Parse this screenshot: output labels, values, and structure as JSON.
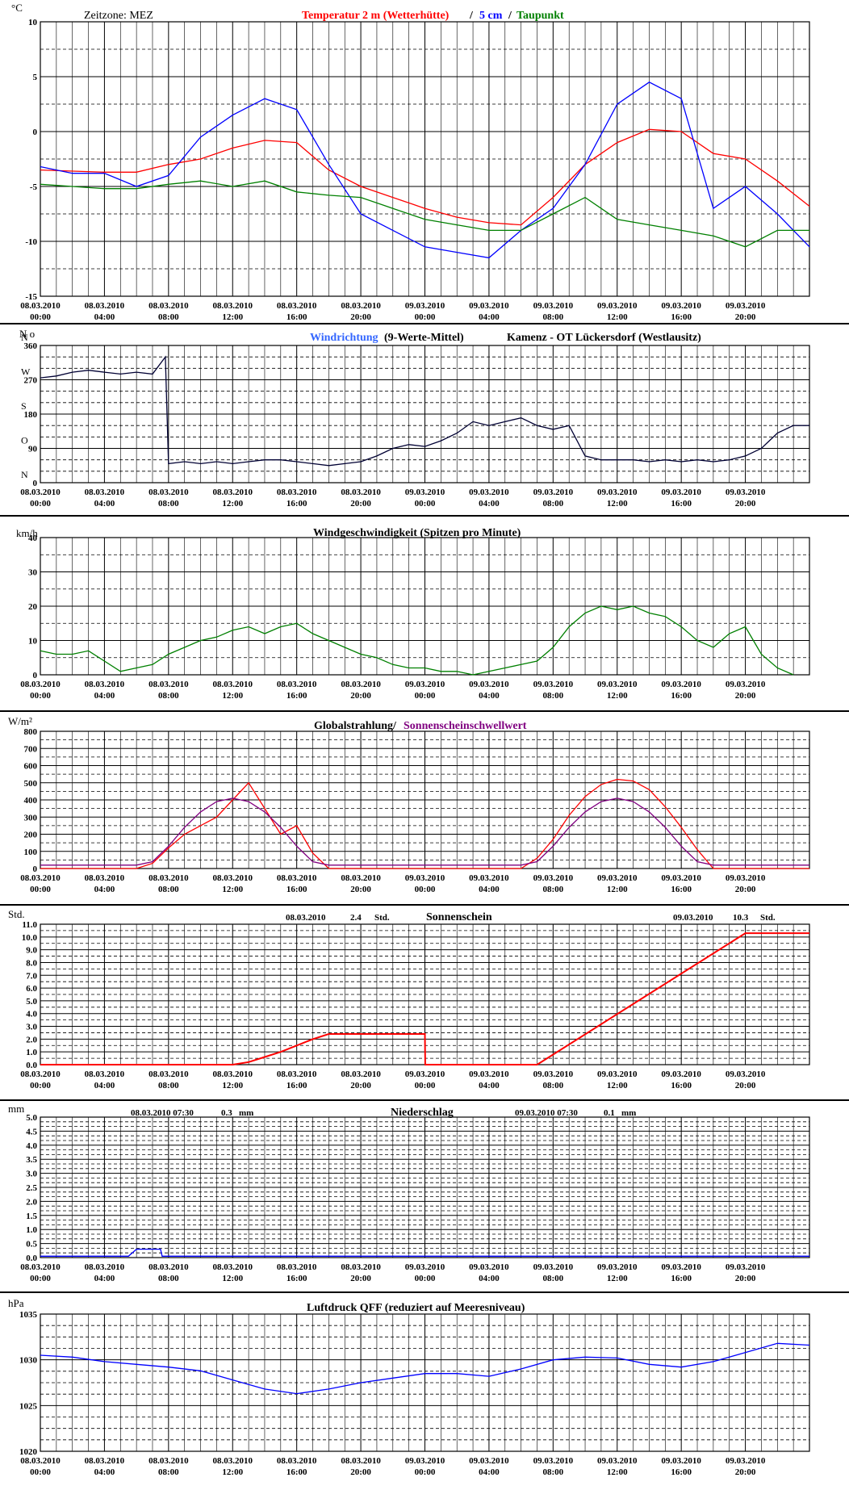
{
  "time_axis": {
    "date_labels": [
      "08.03.2010",
      "08.03.2010",
      "08.03.2010",
      "08.03.2010",
      "08.03.2010",
      "08.03.2010",
      "09.03.2010",
      "09.03.2010",
      "09.03.2010",
      "09.03.2010",
      "09.03.2010",
      "09.03.2010"
    ],
    "time_labels": [
      "00:00",
      "04:00",
      "08:00",
      "12:00",
      "16:00",
      "20:00",
      "00:00",
      "04:00",
      "08:00",
      "12:00",
      "16:00",
      "20:00"
    ],
    "xlim_hours": [
      0,
      48
    ]
  },
  "colors": {
    "grid": "#000000",
    "temp2m": "#ff0000",
    "temp5cm": "#0000ff",
    "dew": "#008000",
    "wind_dir_raw": "#3366ff",
    "wind_dir_avg": "#000033",
    "wind_speed": "#008000",
    "radiation": "#ff0000",
    "sun_threshold": "#800080",
    "sunshine": "#ff0000",
    "precip": "#0000ff",
    "pressure": "#0000ff"
  },
  "panels": {
    "temperature": {
      "unit": "°C",
      "zone": "Zeitzone: MEZ",
      "title_red": "Temperatur 2 m (Wetterhütte)",
      "slash1": "/",
      "title_blue": "5 cm",
      "slash2": "/",
      "title_green": "Taupunkt",
      "yticks": [
        "10",
        "5",
        "0",
        "-5",
        "-10",
        "-15"
      ]
    },
    "wind_dir": {
      "unit": "N o",
      "title_blue": "Windrichtung",
      "title_black": "(9-Werte-Mittel)",
      "station": "Kamenz - OT Lückersdorf (Westlausitz)",
      "yticks": [
        "360",
        "270",
        "180",
        "90",
        "0"
      ],
      "compass": [
        "N",
        "W",
        "S",
        "O",
        "N"
      ]
    },
    "wind_speed": {
      "unit": "km/h",
      "title": "Windgeschwindigkeit (Spitzen pro Minute)",
      "yticks": [
        "40",
        "30",
        "20",
        "10",
        "0"
      ]
    },
    "radiation": {
      "unit": "W/m²",
      "title_red": "Globalstrahlung/",
      "title_purple": "Sonnenscheinschwellwert",
      "yticks": [
        "800",
        "700",
        "600",
        "500",
        "400",
        "300",
        "200",
        "100",
        "0"
      ]
    },
    "sunshine": {
      "unit": "Std.",
      "title": "Sonnenschein",
      "day1_date": "08.03.2010",
      "day1_value": "2.4",
      "day1_unit": "Std.",
      "day2_date": "09.03.2010",
      "day2_value": "10.3",
      "day2_unit": "Std.",
      "yticks": [
        "11.0",
        "10.0",
        "9.0",
        "8.0",
        "7.0",
        "6.0",
        "5.0",
        "4.0",
        "3.0",
        "2.0",
        "1.0",
        "0.0"
      ]
    },
    "precipitation": {
      "unit": "mm",
      "title": "Niederschlag",
      "day1_date": "08.03.2010 07:30",
      "day1_value": "0.3",
      "day1_unit": "mm",
      "day2_date": "09.03.2010 07:30",
      "day2_value": "0.1",
      "day2_unit": "mm",
      "yticks": [
        "5.0",
        "4.5",
        "4.0",
        "3.5",
        "3.0",
        "2.5",
        "2.0",
        "1.5",
        "1.0",
        "0.5",
        "0.0"
      ]
    },
    "pressure": {
      "unit": "hPa",
      "title": "Luftdruck QFF (reduziert auf Meeresniveau)",
      "yticks": [
        "1035",
        "1030",
        "1025",
        "1020"
      ]
    }
  },
  "chart_data": [
    {
      "type": "line",
      "ylim": [
        -15,
        10
      ],
      "x_hours": [
        0,
        2,
        4,
        6,
        8,
        10,
        12,
        14,
        16,
        18,
        20,
        22,
        24,
        26,
        28,
        30,
        32,
        34,
        36,
        38,
        40,
        42,
        44,
        46,
        48
      ],
      "series": [
        {
          "values": [
            -3.5,
            -3.6,
            -3.7,
            -3.7,
            -3.0,
            -2.5,
            -1.5,
            -0.8,
            -1.0,
            -3.5,
            -5.0,
            -6.0,
            -7.0,
            -7.8,
            -8.3,
            -8.5,
            -6.0,
            -3.0,
            -1.0,
            0.2,
            0.0,
            -2.0,
            -2.5,
            -4.5,
            -6.8
          ]
        },
        {
          "values": [
            -3.2,
            -3.8,
            -3.8,
            -5.0,
            -4.0,
            -0.5,
            1.5,
            3.0,
            2.0,
            -3.0,
            -7.5,
            -9.0,
            -10.5,
            -11.0,
            -11.5,
            -9.0,
            -7.0,
            -3.0,
            2.5,
            4.5,
            3.0,
            -7.0,
            -5.0,
            -7.5,
            -10.5
          ]
        },
        {
          "values": [
            -4.8,
            -5.0,
            -5.2,
            -5.2,
            -4.8,
            -4.5,
            -5.0,
            -4.5,
            -5.5,
            -5.8,
            -6.0,
            -7.0,
            -8.0,
            -8.5,
            -9.0,
            -9.0,
            -7.5,
            -6.0,
            -8.0,
            -8.5,
            -9.0,
            -9.5,
            -10.5,
            -9.0,
            -9.0
          ]
        }
      ]
    },
    {
      "type": "line",
      "ylim": [
        0,
        360
      ],
      "x_hours": [
        0,
        1,
        2,
        3,
        4,
        5,
        6,
        7,
        7.8,
        8,
        9,
        10,
        11,
        12,
        13,
        14,
        15,
        16,
        17,
        18,
        19,
        20,
        21,
        22,
        23,
        24,
        25,
        26,
        27,
        28,
        29,
        30,
        31,
        32,
        33,
        34,
        35,
        36,
        37,
        38,
        39,
        40,
        41,
        42,
        43,
        44,
        45,
        46,
        47,
        48
      ],
      "series": [
        {
          "values": [
            275,
            280,
            290,
            295,
            290,
            285,
            290,
            285,
            330,
            50,
            55,
            50,
            55,
            50,
            55,
            60,
            60,
            55,
            50,
            45,
            50,
            55,
            70,
            90,
            100,
            95,
            110,
            130,
            160,
            150,
            160,
            170,
            150,
            140,
            150,
            70,
            60,
            60,
            60,
            55,
            60,
            55,
            60,
            55,
            60,
            70,
            90,
            130,
            150,
            150
          ]
        }
      ]
    },
    {
      "type": "line",
      "ylim": [
        0,
        40
      ],
      "x_hours": [
        0,
        1,
        2,
        3,
        4,
        5,
        6,
        7,
        8,
        9,
        10,
        11,
        12,
        13,
        14,
        15,
        16,
        17,
        18,
        19,
        20,
        21,
        22,
        23,
        24,
        25,
        26,
        27,
        28,
        29,
        30,
        31,
        32,
        33,
        34,
        35,
        36,
        37,
        38,
        39,
        40,
        41,
        42,
        43,
        44,
        45,
        46,
        47
      ],
      "series": [
        {
          "values": [
            7,
            6,
            6,
            7,
            4,
            1,
            2,
            3,
            6,
            8,
            10,
            11,
            13,
            14,
            12,
            14,
            15,
            12,
            10,
            8,
            6,
            5,
            3,
            2,
            2,
            1,
            1,
            0,
            1,
            2,
            3,
            4,
            8,
            14,
            18,
            20,
            19,
            20,
            18,
            17,
            14,
            10,
            8,
            12,
            14,
            6,
            2,
            0
          ]
        }
      ]
    },
    {
      "type": "line",
      "ylim": [
        0,
        800
      ],
      "x_hours": [
        0,
        6,
        7,
        8,
        9,
        10,
        11,
        12,
        13,
        14,
        15,
        16,
        17,
        18,
        24,
        30,
        31,
        32,
        33,
        34,
        35,
        36,
        37,
        38,
        39,
        40,
        41,
        42,
        43,
        48
      ],
      "series": [
        {
          "values": [
            0,
            0,
            30,
            120,
            200,
            250,
            300,
            400,
            500,
            350,
            200,
            250,
            90,
            0,
            0,
            0,
            60,
            170,
            310,
            420,
            490,
            520,
            510,
            460,
            360,
            240,
            110,
            0,
            0,
            0
          ]
        },
        {
          "values": [
            20,
            20,
            40,
            130,
            240,
            330,
            390,
            410,
            390,
            330,
            240,
            130,
            40,
            20,
            20,
            20,
            40,
            130,
            240,
            330,
            390,
            410,
            390,
            330,
            240,
            130,
            40,
            20,
            20,
            20
          ]
        }
      ]
    },
    {
      "type": "line",
      "ylim": [
        0,
        11
      ],
      "x_hours": [
        0,
        12,
        13,
        14,
        15,
        16,
        17,
        18,
        24,
        24.02,
        31,
        44,
        48
      ],
      "series": [
        {
          "values": [
            0,
            0,
            0.2,
            0.6,
            1.0,
            1.5,
            2.0,
            2.4,
            2.4,
            0,
            0,
            10.3,
            10.3
          ]
        }
      ]
    },
    {
      "type": "line",
      "ylim": [
        0,
        5
      ],
      "x_hours": [
        0,
        5.5,
        6,
        7.5,
        7.6,
        48
      ],
      "series": [
        {
          "values": [
            0.05,
            0.05,
            0.3,
            0.3,
            0.05,
            0.05
          ]
        }
      ]
    },
    {
      "type": "line",
      "ylim": [
        1020,
        1035
      ],
      "x_hours": [
        0,
        2,
        4,
        6,
        8,
        10,
        12,
        14,
        16,
        18,
        20,
        22,
        24,
        26,
        28,
        30,
        32,
        34,
        36,
        38,
        40,
        42,
        44,
        46,
        48
      ],
      "series": [
        {
          "values": [
            1030.5,
            1030.3,
            1029.8,
            1029.5,
            1029.2,
            1028.8,
            1027.8,
            1026.8,
            1026.3,
            1026.8,
            1027.5,
            1028.0,
            1028.5,
            1028.5,
            1028.2,
            1029.0,
            1030.0,
            1030.3,
            1030.2,
            1029.5,
            1029.2,
            1029.8,
            1030.8,
            1031.8,
            1031.6
          ]
        }
      ]
    }
  ]
}
